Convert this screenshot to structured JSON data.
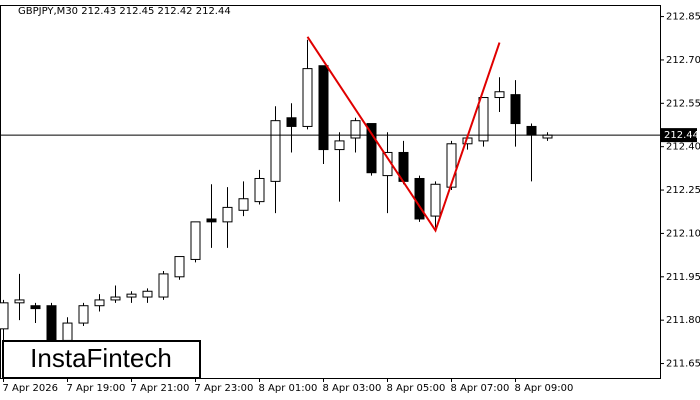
{
  "chart_data": {
    "type": "candlestick",
    "title": "GBPJPY,M30  212.43 212.45 212.42 212.44",
    "logo": "InstaFintech",
    "categories": [
      "7 Apr 2026",
      null,
      null,
      null,
      "7 Apr 19:00",
      null,
      null,
      null,
      "7 Apr 21:00",
      null,
      null,
      null,
      "7 Apr 23:00",
      null,
      null,
      null,
      "8 Apr 01:00",
      null,
      null,
      null,
      "8 Apr 03:00",
      null,
      null,
      null,
      "8 Apr 05:00",
      null,
      null,
      null,
      "8 Apr 07:00",
      null,
      null,
      null,
      "8 Apr 09:00",
      null,
      null
    ],
    "open": [
      211.77,
      211.86,
      211.85,
      211.85,
      211.73,
      211.79,
      211.85,
      211.87,
      211.88,
      211.88,
      211.88,
      211.95,
      212.01,
      212.15,
      212.14,
      212.18,
      212.21,
      212.28,
      212.5,
      212.47,
      212.68,
      212.39,
      212.43,
      212.48,
      212.3,
      212.38,
      212.29,
      212.16,
      212.26,
      212.41,
      212.42,
      212.57,
      212.58,
      212.47,
      212.43
    ],
    "high": [
      211.87,
      211.96,
      211.86,
      211.86,
      211.81,
      211.86,
      211.89,
      211.92,
      211.9,
      211.91,
      211.97,
      212.02,
      212.14,
      212.27,
      212.26,
      212.28,
      212.32,
      212.54,
      212.55,
      212.77,
      212.68,
      212.45,
      212.5,
      212.48,
      212.45,
      212.42,
      212.3,
      212.28,
      212.42,
      212.44,
      212.57,
      212.64,
      212.63,
      212.48,
      212.45
    ],
    "low": [
      211.7,
      211.8,
      211.79,
      211.7,
      211.7,
      211.78,
      211.83,
      211.86,
      211.86,
      211.86,
      211.87,
      211.94,
      212.0,
      212.05,
      212.05,
      212.16,
      212.2,
      212.17,
      212.38,
      212.46,
      212.34,
      212.21,
      212.38,
      212.3,
      212.17,
      212.27,
      212.14,
      212.12,
      212.25,
      212.39,
      212.4,
      212.52,
      212.4,
      212.28,
      212.42
    ],
    "close": [
      211.86,
      211.87,
      211.84,
      211.73,
      211.79,
      211.85,
      211.87,
      211.88,
      211.89,
      211.9,
      211.96,
      212.02,
      212.14,
      212.14,
      212.19,
      212.22,
      212.29,
      212.49,
      212.47,
      212.67,
      212.39,
      212.42,
      212.49,
      212.31,
      212.38,
      212.28,
      212.15,
      212.27,
      212.41,
      212.43,
      212.57,
      212.59,
      212.48,
      212.44,
      212.44
    ],
    "up_color": "#ffffff",
    "down_color": "#000000",
    "ylim": [
      211.6,
      212.89
    ],
    "yticks": [
      211.65,
      {
        "value": 211.8,
        "label": "211.80"
      },
      211.95,
      {
        "value": 212.1,
        "label": "212.10"
      },
      212.25,
      {
        "value": 212.4,
        "label": "212.40"
      },
      212.55,
      {
        "value": 212.7,
        "label": "212.70"
      },
      212.85
    ],
    "current_price": {
      "value": 212.44,
      "label": "212.44"
    },
    "pattern_line": {
      "color": "#e00000",
      "points": [
        [
          19,
          212.78
        ],
        [
          27,
          212.11
        ],
        [
          31,
          212.76
        ]
      ]
    }
  }
}
